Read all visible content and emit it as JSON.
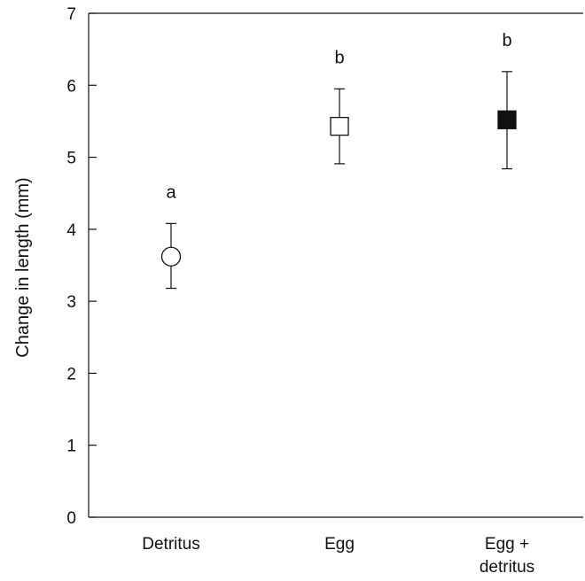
{
  "chart_data": {
    "type": "scatter",
    "title": "",
    "xlabel": "",
    "ylabel": "Change in length (mm)",
    "ylim": [
      0,
      7
    ],
    "yticks": [
      "0",
      "1",
      "2",
      "3",
      "4",
      "5",
      "6",
      "7"
    ],
    "categories": [
      {
        "lines": [
          "Detritus"
        ]
      },
      {
        "lines": [
          "Egg"
        ]
      },
      {
        "lines": [
          "Egg +",
          "detritus"
        ]
      }
    ],
    "points": [
      {
        "category": "Detritus",
        "mean": 3.62,
        "upper": 4.08,
        "lower": 3.18,
        "marker": "circle-open",
        "group_label": "a"
      },
      {
        "category": "Egg",
        "mean": 5.43,
        "upper": 5.95,
        "lower": 4.91,
        "marker": "square-open",
        "group_label": "b"
      },
      {
        "category": "Egg + detritus",
        "mean": 5.52,
        "upper": 6.19,
        "lower": 4.84,
        "marker": "square-filled",
        "group_label": "b"
      }
    ],
    "grid": false,
    "colors": {
      "axis": "#111111",
      "marker": "#111111"
    }
  }
}
